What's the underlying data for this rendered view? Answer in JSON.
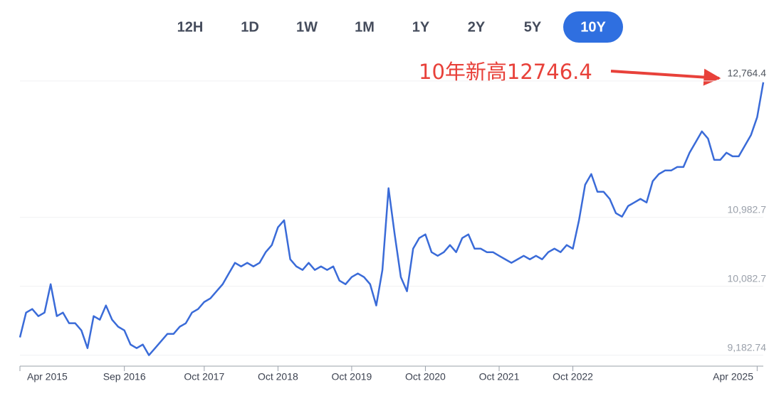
{
  "range_buttons": [
    "12H",
    "1D",
    "1W",
    "1M",
    "1Y",
    "2Y",
    "5Y",
    "10Y"
  ],
  "active_range": 7,
  "chart_data": {
    "type": "line",
    "annotation": "10年新高12746.4",
    "color": "#3a6bd8",
    "grid": true,
    "x": [
      "2015-04",
      "2015-05",
      "2015-06",
      "2015-07",
      "2015-08",
      "2015-09",
      "2015-10",
      "2015-11",
      "2015-12",
      "2016-01",
      "2016-02",
      "2016-03",
      "2016-04",
      "2016-05",
      "2016-06",
      "2016-07",
      "2016-08",
      "2016-09",
      "2016-10",
      "2016-11",
      "2016-12",
      "2017-01",
      "2017-02",
      "2017-03",
      "2017-04",
      "2017-05",
      "2017-06",
      "2017-07",
      "2017-08",
      "2017-09",
      "2017-10",
      "2017-11",
      "2017-12",
      "2018-01",
      "2018-02",
      "2018-03",
      "2018-04",
      "2018-05",
      "2018-06",
      "2018-07",
      "2018-08",
      "2018-09",
      "2018-10",
      "2018-11",
      "2018-12",
      "2019-01",
      "2019-02",
      "2019-03",
      "2019-04",
      "2019-05",
      "2019-06",
      "2019-07",
      "2019-08",
      "2019-09",
      "2019-10",
      "2019-11",
      "2019-12",
      "2020-01",
      "2020-02",
      "2020-03",
      "2020-04",
      "2020-05",
      "2020-06",
      "2020-07",
      "2020-08",
      "2020-09",
      "2020-10",
      "2020-11",
      "2020-12",
      "2021-01",
      "2021-02",
      "2021-03",
      "2021-04",
      "2021-05",
      "2021-06",
      "2021-07",
      "2021-08",
      "2021-09",
      "2021-10",
      "2021-11",
      "2021-12",
      "2022-01",
      "2022-02",
      "2022-03",
      "2022-04",
      "2022-05",
      "2022-06",
      "2022-07",
      "2022-08",
      "2022-09",
      "2022-10",
      "2022-11",
      "2022-12",
      "2023-01",
      "2023-02",
      "2023-03",
      "2023-04",
      "2023-05",
      "2023-06",
      "2023-07",
      "2023-08",
      "2023-09",
      "2023-10",
      "2023-11",
      "2023-12",
      "2024-01",
      "2024-02",
      "2024-03",
      "2024-04",
      "2024-05",
      "2024-06",
      "2024-07",
      "2024-08",
      "2024-09",
      "2024-10",
      "2024-11",
      "2024-12",
      "2025-01",
      "2025-02",
      "2025-03",
      "2025-04",
      "2025-05"
    ],
    "values": [
      9415,
      9739,
      9786,
      9693,
      9739,
      10110,
      9693,
      9739,
      9600,
      9600,
      9507,
      9275,
      9693,
      9646,
      9832,
      9646,
      9554,
      9507,
      9322,
      9275,
      9322,
      9183,
      9275,
      9368,
      9461,
      9461,
      9554,
      9600,
      9739,
      9786,
      9878,
      9925,
      10018,
      10110,
      10250,
      10389,
      10342,
      10389,
      10342,
      10389,
      10528,
      10621,
      10853,
      10945,
      10435,
      10342,
      10296,
      10389,
      10296,
      10342,
      10296,
      10342,
      10157,
      10110,
      10203,
      10250,
      10203,
      10110,
      9832,
      10296,
      11363,
      10760,
      10203,
      10018,
      10574,
      10713,
      10760,
      10528,
      10481,
      10528,
      10621,
      10528,
      10713,
      10760,
      10574,
      10574,
      10528,
      10528,
      10481,
      10435,
      10389,
      10435,
      10481,
      10435,
      10481,
      10435,
      10528,
      10574,
      10528,
      10621,
      10574,
      10945,
      11409,
      11548,
      11317,
      11317,
      11224,
      11038,
      10992,
      11131,
      11177,
      11224,
      11177,
      11455,
      11548,
      11595,
      11595,
      11641,
      11641,
      11827,
      11966,
      12105,
      12012,
      11734,
      11734,
      11827,
      11780,
      11780,
      11919,
      12059,
      12291,
      12746.4
    ],
    "xlim": [
      "2015-04",
      "2025-05"
    ],
    "xticks": [
      {
        "value": "2015-04",
        "label": "Apr 2015"
      },
      {
        "value": "2016-09",
        "label": "Sep 2016"
      },
      {
        "value": "2017-10",
        "label": "Oct 2017"
      },
      {
        "value": "2018-10",
        "label": "Oct 2018"
      },
      {
        "value": "2019-10",
        "label": "Oct 2019"
      },
      {
        "value": "2020-10",
        "label": "Oct 2020"
      },
      {
        "value": "2021-10",
        "label": "Oct 2021"
      },
      {
        "value": "2022-10",
        "label": "Oct 2022"
      },
      {
        "value": "2025-04",
        "label": "Apr 2025"
      }
    ],
    "ylim": [
      9040,
      12800
    ],
    "yticks": [
      {
        "value": 9182.74,
        "label": "9,182.74"
      },
      {
        "value": 10082.74,
        "label": "10,082.7"
      },
      {
        "value": 10982.74,
        "label": "10,982.7"
      },
      {
        "value": 12764.4,
        "label": "12,764.4"
      }
    ]
  }
}
